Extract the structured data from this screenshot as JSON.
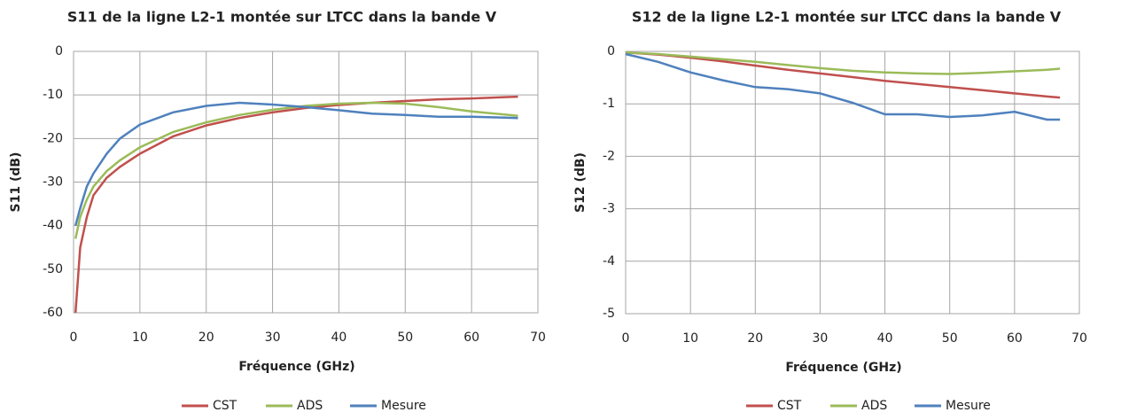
{
  "chart_data": [
    {
      "type": "line",
      "title": "S11 de la ligne L2-1 montée sur LTCC dans la bande V",
      "x_label": "Fréquence   (GHz)",
      "y_label": "S11 (dB)",
      "x": [
        0.3,
        1,
        2,
        3,
        5,
        7,
        10,
        15,
        20,
        25,
        30,
        35,
        40,
        45,
        50,
        55,
        60,
        65,
        67
      ],
      "series": [
        {
          "name": "CST",
          "color": "#c0504d",
          "values": [
            -60,
            -45,
            -38,
            -33,
            -29,
            -26.5,
            -23.5,
            -19.5,
            -17,
            -15.3,
            -14,
            -13,
            -12.3,
            -11.8,
            -11.4,
            -11,
            -10.8,
            -10.5,
            -10.4
          ]
        },
        {
          "name": "ADS",
          "color": "#9bbb59",
          "values": [
            -43,
            -38,
            -34,
            -31,
            -27.5,
            -25,
            -22,
            -18.5,
            -16.3,
            -14.6,
            -13.4,
            -12.5,
            -12,
            -11.8,
            -12,
            -12.8,
            -13.8,
            -14.5,
            -14.8
          ]
        },
        {
          "name": "Mesure",
          "color": "#4f81bd",
          "values": [
            -40,
            -36,
            -31,
            -28,
            -23.5,
            -20,
            -16.8,
            -14,
            -12.5,
            -11.8,
            -12.2,
            -12.8,
            -13.5,
            -14.3,
            -14.6,
            -15,
            -15,
            -15.2,
            -15.3
          ]
        }
      ],
      "xlim": [
        0,
        70
      ],
      "xticks": [
        0,
        10,
        20,
        30,
        40,
        50,
        60,
        70
      ],
      "ylim": [
        -60,
        0
      ],
      "yticks": [
        -60,
        -50,
        -40,
        -30,
        -20,
        -10,
        0
      ],
      "grid": true,
      "legend": "bottom"
    },
    {
      "type": "line",
      "title": "S12 de la ligne L2-1 montée sur LTCC dans la bande V",
      "x_label": "Fréquence   (GHz)",
      "y_label": "S12 (dB)",
      "x": [
        0,
        5,
        10,
        15,
        20,
        25,
        30,
        35,
        40,
        45,
        50,
        55,
        60,
        65,
        67
      ],
      "series": [
        {
          "name": "CST",
          "color": "#c0504d",
          "values": [
            -0.02,
            -0.06,
            -0.12,
            -0.19,
            -0.27,
            -0.35,
            -0.42,
            -0.49,
            -0.56,
            -0.62,
            -0.68,
            -0.74,
            -0.8,
            -0.86,
            -0.88
          ]
        },
        {
          "name": "ADS",
          "color": "#9bbb59",
          "values": [
            -0.02,
            -0.05,
            -0.1,
            -0.15,
            -0.2,
            -0.26,
            -0.32,
            -0.37,
            -0.4,
            -0.42,
            -0.43,
            -0.41,
            -0.38,
            -0.35,
            -0.33
          ]
        },
        {
          "name": "Mesure",
          "color": "#4f81bd",
          "values": [
            -0.05,
            -0.2,
            -0.4,
            -0.55,
            -0.68,
            -0.72,
            -0.8,
            -0.98,
            -1.2,
            -1.2,
            -1.25,
            -1.22,
            -1.15,
            -1.3,
            -1.3
          ]
        }
      ],
      "xlim": [
        0,
        70
      ],
      "xticks": [
        0,
        10,
        20,
        30,
        40,
        50,
        60,
        70
      ],
      "ylim": [
        -5,
        0
      ],
      "yticks": [
        -5,
        -4,
        -3,
        -2,
        -1,
        0
      ],
      "grid": true,
      "legend": "bottom"
    }
  ]
}
